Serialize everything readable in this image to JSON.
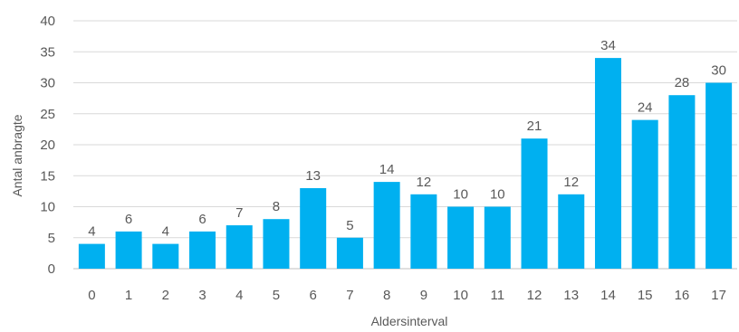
{
  "chart_data": {
    "type": "bar",
    "title": "",
    "xlabel": "Aldersinterval",
    "ylabel": "Antal anbragte",
    "categories": [
      "0",
      "1",
      "2",
      "3",
      "4",
      "5",
      "6",
      "7",
      "8",
      "9",
      "10",
      "11",
      "12",
      "13",
      "14",
      "15",
      "16",
      "17"
    ],
    "values": [
      4,
      6,
      4,
      6,
      7,
      8,
      13,
      5,
      14,
      12,
      10,
      10,
      21,
      12,
      34,
      24,
      28,
      30
    ],
    "ylim": [
      0,
      40
    ],
    "yticks": [
      0,
      5,
      10,
      15,
      20,
      25,
      30,
      35,
      40
    ],
    "grid": true,
    "legend": "none",
    "bar_color": "#00b0f0"
  }
}
